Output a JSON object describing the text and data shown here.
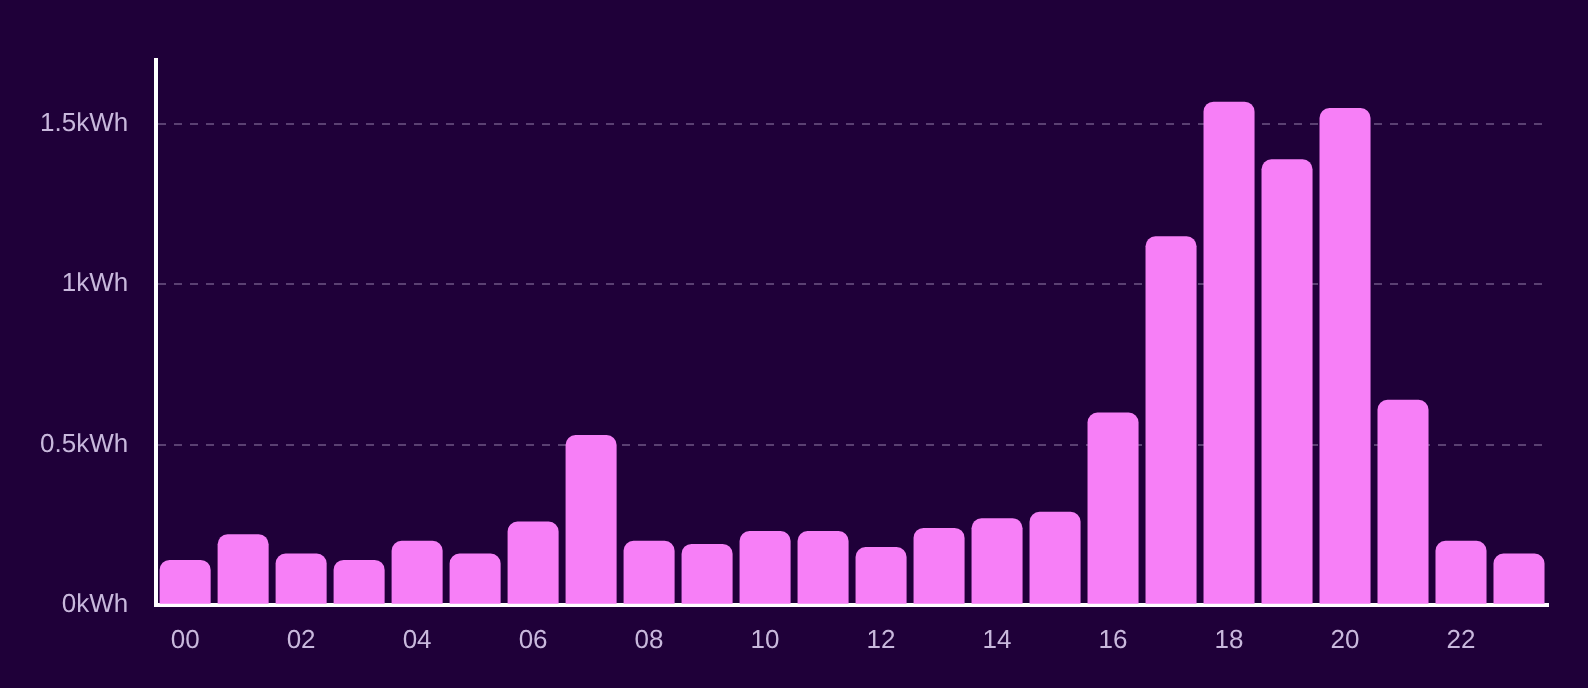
{
  "chart_data": {
    "type": "bar",
    "categories": [
      "00",
      null,
      "02",
      null,
      "04",
      null,
      "06",
      null,
      "08",
      null,
      "10",
      null,
      "12",
      null,
      "14",
      null,
      "16",
      null,
      "18",
      null,
      "20",
      null,
      "22",
      null
    ],
    "values": [
      0.14,
      0.22,
      0.16,
      0.14,
      0.2,
      0.16,
      0.26,
      0.53,
      0.2,
      0.19,
      0.23,
      0.23,
      0.18,
      0.24,
      0.27,
      0.29,
      0.6,
      1.15,
      1.57,
      1.39,
      1.55,
      0.64,
      0.2,
      0.16
    ],
    "color": "#f77ff7",
    "ylim": [
      0,
      1.7
    ],
    "yticks": [
      {
        "value": 0,
        "label": "0kWh"
      },
      {
        "value": 0.5,
        "label": "0.5kWh"
      },
      {
        "value": 1,
        "label": "1kWh"
      },
      {
        "value": 1.5,
        "label": "1.5kWh"
      }
    ],
    "grid": "y",
    "legend": false
  }
}
